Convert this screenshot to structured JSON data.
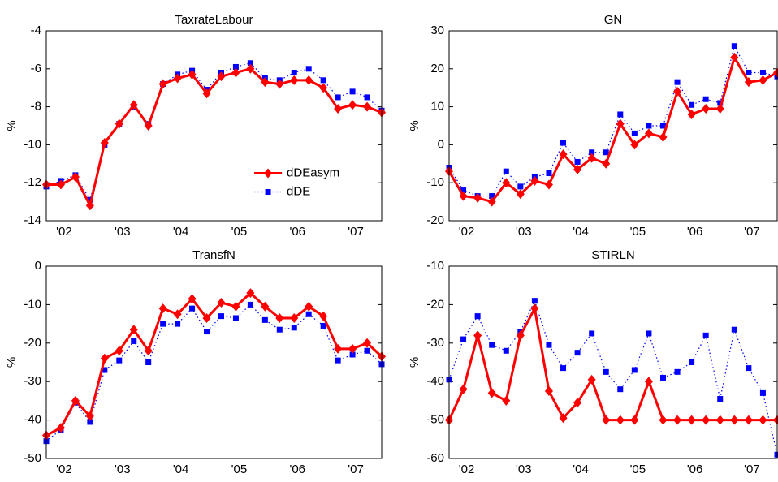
{
  "chart_data": [
    {
      "type": "line",
      "title": "TaxrateLabour",
      "ylabel": "%",
      "categories": [
        null,
        "'02",
        null,
        null,
        null,
        "'03",
        null,
        null,
        null,
        "'04",
        null,
        null,
        null,
        "'05",
        null,
        null,
        null,
        "'06",
        null,
        null,
        null,
        "'07",
        null,
        null
      ],
      "ylim": [
        -14,
        -4
      ],
      "yticks": [
        -14,
        -12,
        -10,
        -8,
        -6,
        -4
      ],
      "legend": "lower right",
      "series": [
        {
          "name": "dDEasym",
          "color": "#ff0000",
          "values": [
            -12.1,
            -12.1,
            -11.7,
            -13.2,
            -9.9,
            -8.9,
            -7.9,
            -9.0,
            -6.8,
            -6.5,
            -6.3,
            -7.3,
            -6.4,
            -6.2,
            -6.0,
            -6.7,
            -6.8,
            -6.6,
            -6.6,
            -7.0,
            -8.1,
            -7.9,
            -8.0,
            -8.3
          ]
        },
        {
          "name": "dDE",
          "color": "#0000ff",
          "values": [
            -12.2,
            -11.9,
            -11.6,
            -12.9,
            -10.0,
            -8.9,
            -8.0,
            -8.9,
            -6.8,
            -6.3,
            -6.1,
            -7.1,
            -6.2,
            -5.9,
            -5.7,
            -6.5,
            -6.6,
            -6.2,
            -6.0,
            -6.6,
            -7.5,
            -7.2,
            -7.5,
            -8.2
          ]
        }
      ]
    },
    {
      "type": "line",
      "title": "GN",
      "ylabel": "%",
      "categories": [
        null,
        "'02",
        null,
        null,
        null,
        "'03",
        null,
        null,
        null,
        "'04",
        null,
        null,
        null,
        "'05",
        null,
        null,
        null,
        "'06",
        null,
        null,
        null,
        "'07",
        null,
        null
      ],
      "ylim": [
        -20,
        30
      ],
      "yticks": [
        -20,
        -10,
        0,
        10,
        20,
        30
      ],
      "series": [
        {
          "name": "dDEasym",
          "color": "#ff0000",
          "values": [
            -7,
            -13.5,
            -14,
            -15,
            -10,
            -13,
            -9.5,
            -10.5,
            -2.5,
            -6.5,
            -3.5,
            -5,
            5.5,
            0,
            3,
            2,
            14,
            8,
            9.5,
            9.5,
            23,
            16.5,
            17,
            19
          ]
        },
        {
          "name": "dDE",
          "color": "#0000ff",
          "values": [
            -6,
            -12,
            -13.5,
            -13.5,
            -7,
            -11,
            -8.5,
            -7.5,
            0.5,
            -4.5,
            -2,
            -2,
            8,
            3,
            5,
            5,
            16.5,
            10.5,
            12,
            11,
            26,
            19,
            19,
            18
          ]
        }
      ]
    },
    {
      "type": "line",
      "title": "TransfN",
      "ylabel": "%",
      "categories": [
        null,
        "'02",
        null,
        null,
        null,
        "'03",
        null,
        null,
        null,
        "'04",
        null,
        null,
        null,
        "'05",
        null,
        null,
        null,
        "'06",
        null,
        null,
        null,
        "'07",
        null,
        null
      ],
      "ylim": [
        -50,
        0
      ],
      "yticks": [
        -50,
        -40,
        -30,
        -20,
        -10,
        0
      ],
      "series": [
        {
          "name": "dDEasym",
          "color": "#ff0000",
          "values": [
            -44,
            -42,
            -35,
            -39,
            -24,
            -22,
            -16.5,
            -22,
            -11,
            -12.5,
            -8.5,
            -13.5,
            -9.5,
            -10.5,
            -7,
            -10.5,
            -13.5,
            -13.5,
            -10.5,
            -13,
            -21.5,
            -21.5,
            -20,
            -23.5
          ]
        },
        {
          "name": "dDE",
          "color": "#0000ff",
          "values": [
            -45.5,
            -42.5,
            -35.5,
            -40.5,
            -27,
            -24.5,
            -19.5,
            -25,
            -15,
            -15,
            -11,
            -17,
            -13,
            -13.5,
            -10,
            -14,
            -16.5,
            -16,
            -12.5,
            -15.5,
            -24.5,
            -23,
            -22,
            -25.5
          ]
        }
      ]
    },
    {
      "type": "line",
      "title": "STIRLN",
      "ylabel": "%",
      "categories": [
        null,
        "'02",
        null,
        null,
        null,
        "'03",
        null,
        null,
        null,
        "'04",
        null,
        null,
        null,
        "'05",
        null,
        null,
        null,
        "'06",
        null,
        null,
        null,
        "'07",
        null,
        null
      ],
      "ylim": [
        -60,
        -10
      ],
      "yticks": [
        -60,
        -50,
        -40,
        -30,
        -20,
        -10
      ],
      "series": [
        {
          "name": "dDEasym",
          "color": "#ff0000",
          "values": [
            -50,
            -42,
            -28,
            -43,
            -45,
            -28,
            -21,
            -42.5,
            -49.5,
            -45.5,
            -39.5,
            -50,
            -50,
            -50,
            -40,
            -50,
            -50,
            -50,
            -50,
            -50,
            -50,
            -50,
            -50,
            -50
          ]
        },
        {
          "name": "dDE",
          "color": "#0000ff",
          "values": [
            -39.5,
            -29,
            -23,
            -30.5,
            -32,
            -27,
            -19,
            -30.5,
            -36.5,
            -32.5,
            -27.5,
            -37.5,
            -42,
            -37,
            -27.5,
            -39,
            -37.5,
            -35,
            -28,
            -44.5,
            -26.5,
            -36.5,
            -43,
            -59
          ]
        }
      ]
    }
  ]
}
